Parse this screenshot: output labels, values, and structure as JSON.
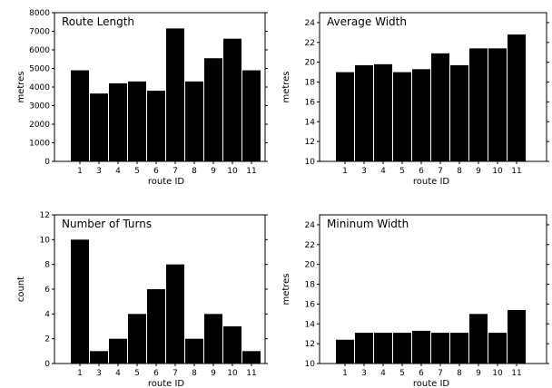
{
  "chart_data": [
    {
      "type": "bar",
      "title": "Route Length",
      "xlabel": "route ID",
      "ylabel": "metres",
      "categories": [
        "1",
        "3",
        "4",
        "5",
        "6",
        "7",
        "8",
        "9",
        "10",
        "11"
      ],
      "values": [
        4900,
        3650,
        4200,
        4300,
        3800,
        7150,
        4300,
        5550,
        6600,
        4900
      ],
      "ylim": [
        0,
        8000
      ],
      "yticks": [
        0,
        1000,
        2000,
        3000,
        4000,
        5000,
        6000,
        7000,
        8000
      ],
      "bar_color": "#000000"
    },
    {
      "type": "bar",
      "title": "Average Width",
      "xlabel": "route ID",
      "ylabel": "metres",
      "categories": [
        "1",
        "3",
        "4",
        "5",
        "6",
        "7",
        "8",
        "9",
        "10",
        "11"
      ],
      "values": [
        19.0,
        19.7,
        19.8,
        19.0,
        19.3,
        20.9,
        19.7,
        21.4,
        21.4,
        22.8
      ],
      "ylim": [
        10,
        25
      ],
      "yticks": [
        10,
        12,
        14,
        16,
        18,
        20,
        22,
        24
      ],
      "bar_color": "#000000"
    },
    {
      "type": "bar",
      "title": "Number of Turns",
      "xlabel": "route ID",
      "ylabel": "count",
      "categories": [
        "1",
        "3",
        "4",
        "5",
        "6",
        "7",
        "8",
        "9",
        "10",
        "11"
      ],
      "values": [
        10,
        1,
        2,
        4,
        6,
        8,
        2,
        4,
        3,
        1
      ],
      "ylim": [
        0,
        12
      ],
      "yticks": [
        0,
        2,
        4,
        6,
        8,
        10,
        12
      ],
      "bar_color": "#000000"
    },
    {
      "type": "bar",
      "title": "Mininum Width",
      "xlabel": "route ID",
      "ylabel": "metres",
      "categories": [
        "1",
        "3",
        "4",
        "5",
        "6",
        "7",
        "8",
        "9",
        "10",
        "11"
      ],
      "values": [
        12.4,
        13.1,
        13.1,
        13.1,
        13.3,
        13.1,
        13.1,
        15.0,
        13.1,
        15.4
      ],
      "ylim": [
        10,
        25
      ],
      "yticks": [
        10,
        12,
        14,
        16,
        18,
        20,
        22,
        24
      ],
      "bar_color": "#000000"
    }
  ]
}
